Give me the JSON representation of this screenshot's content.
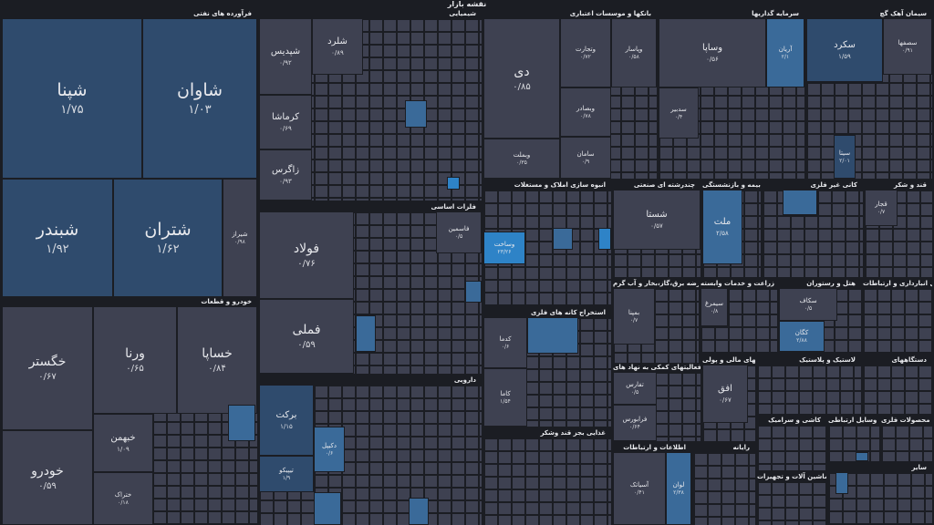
{
  "page_title": "نقشه بازار",
  "sections": {
    "oil": "فرآورده های نفتی",
    "chem": "شیمیایی",
    "banks": "بانکها و موسسات اعتباری",
    "invest": "سرمایه گذاریها",
    "cement": "سیمان آهک گچ",
    "auto": "خودرو و قطعات",
    "metals": "فلزات اساسی",
    "pharma": "دارویی",
    "realestate": "انبوه سازی املاک و مستغلات",
    "multi": "چندرشته ای صنعتی",
    "insurance": "بیمه و بازنشستگی",
    "nonmetal": "کانی غیر فلزی",
    "sugar": "قند و شکر",
    "mining": "استخراج کانه های فلزی",
    "utilities": "عرضه برق،گاز،بخار و آب گرم",
    "agri": "زراعت و خدمات وابسته",
    "hotel": "هتل و رستوران",
    "transport": "حمل و نقل انبارداری و ارتباطات",
    "computer": "فعالیتهای کمکی به نهاد های",
    "finance": "واسطه گریهای مالی و پولی",
    "plastic": "لاستیک و پلاستیک",
    "devices": "دستگاههای",
    "food": "غذایی بجز قند وشکر",
    "it": "اطلاعات و ارتباطات",
    "radio": "رایانه",
    "tile": "کاشی و سرامیک",
    "vehicles": "وسایل ارتباطی",
    "metalprod": "محصولات فلزی",
    "machinery": "ماشین آلات و تجهیزات",
    "other": "سایر"
  },
  "tiles": {
    "shapna": {
      "name": "شپنا",
      "value": "۱/۷۵"
    },
    "shavan": {
      "name": "شاوان",
      "value": "۱/۰۳"
    },
    "shbandar": {
      "name": "شبندر",
      "value": "۱/۹۲"
    },
    "shtran": {
      "name": "شتران",
      "value": "۱/۶۲"
    },
    "shiraz": {
      "name": "شیراز",
      "value": "۰/۹۸"
    },
    "shepdis": {
      "name": "شپدیس",
      "value": "۰/۹۲"
    },
    "shlord": {
      "name": "شلرد",
      "value": "۰/۸۹"
    },
    "kermasha": {
      "name": "کرماشا",
      "value": "۰/۶۹"
    },
    "zagros": {
      "name": "زاگرس",
      "value": "۰/۹۳"
    },
    "di": {
      "name": "دی",
      "value": "۰/۸۵"
    },
    "vbemelat": {
      "name": "وبملت",
      "value": "۰/۳۵"
    },
    "vtejarat": {
      "name": "وتجارت",
      "value": "۰/۷۲"
    },
    "vpasar": {
      "name": "وپاسار",
      "value": "۰/۵۸"
    },
    "vsadr": {
      "name": "وبصادر",
      "value": "۰/۷۸"
    },
    "saman": {
      "name": "سامان",
      "value": "۰/۹"
    },
    "vsapa": {
      "name": "وساپا",
      "value": "۰/۵۶"
    },
    "sadbir": {
      "name": "سدبیر",
      "value": "۰/۴"
    },
    "aryan": {
      "name": "آریان",
      "value": "۲/۱"
    },
    "sekrod": {
      "name": "سکرد",
      "value": "۱/۵۹"
    },
    "sesfaha": {
      "name": "سصفها",
      "value": "۰/۹۱"
    },
    "sita": {
      "name": "سیتا",
      "value": "۲/۰۱"
    },
    "khegostar": {
      "name": "خگستر",
      "value": "۰/۶۷"
    },
    "vrna": {
      "name": "ورنا",
      "value": "۰/۶۵"
    },
    "khsapa": {
      "name": "خساپا",
      "value": "۰/۸۴"
    },
    "kheben": {
      "name": "خبهمن",
      "value": "۱/۰۹"
    },
    "khodro": {
      "name": "خودرو",
      "value": "۰/۵۹"
    },
    "khetrak": {
      "name": "ختراک",
      "value": "۰/۱۸"
    },
    "foolad": {
      "name": "فولاد",
      "value": "۰/۷۶"
    },
    "femli": {
      "name": "فملی",
      "value": "۰/۵۹"
    },
    "fasman": {
      "name": "فاسمین",
      "value": "۰/۵"
    },
    "baraket": {
      "name": "برکت",
      "value": "۱/۱۵"
    },
    "tipico": {
      "name": "تیپیکو",
      "value": "۱/۹"
    },
    "dicipol": {
      "name": "دکیپل",
      "value": "۰/۶"
    },
    "shasta": {
      "name": "شستا",
      "value": "۰/۵۷"
    },
    "melat": {
      "name": "ملت",
      "value": "۲/۵۸"
    },
    "kama": {
      "name": "کاما",
      "value": "۱/۵۴"
    },
    "kadma": {
      "name": "کدما",
      "value": "۰/۶"
    },
    "ofogh": {
      "name": "افق",
      "value": "۰/۶۷"
    },
    "asiatek": {
      "name": "آسیاتک",
      "value": "۰/۴۱"
    },
    "loan": {
      "name": "لوان",
      "value": "۲/۳۸"
    },
    "vasakhat": {
      "name": "وساخت",
      "value": "۲۳/۲۶"
    },
    "bemapna": {
      "name": "بمپنا",
      "value": "۰/۷"
    },
    "sakkaf": {
      "name": "سکاف",
      "value": "۰/۵"
    },
    "kgan": {
      "name": "کگان",
      "value": "۲/۸۸"
    },
    "qajar": {
      "name": "قجار",
      "value": "۰/۷"
    },
    "tnafis": {
      "name": "تفارس",
      "value": "۰/۵"
    },
    "sheakhak": {
      "name": "سیمرغ",
      "value": "۰/۸"
    },
    "faraboors": {
      "name": "فرابورس",
      "value": "۰/۶۴"
    }
  }
}
